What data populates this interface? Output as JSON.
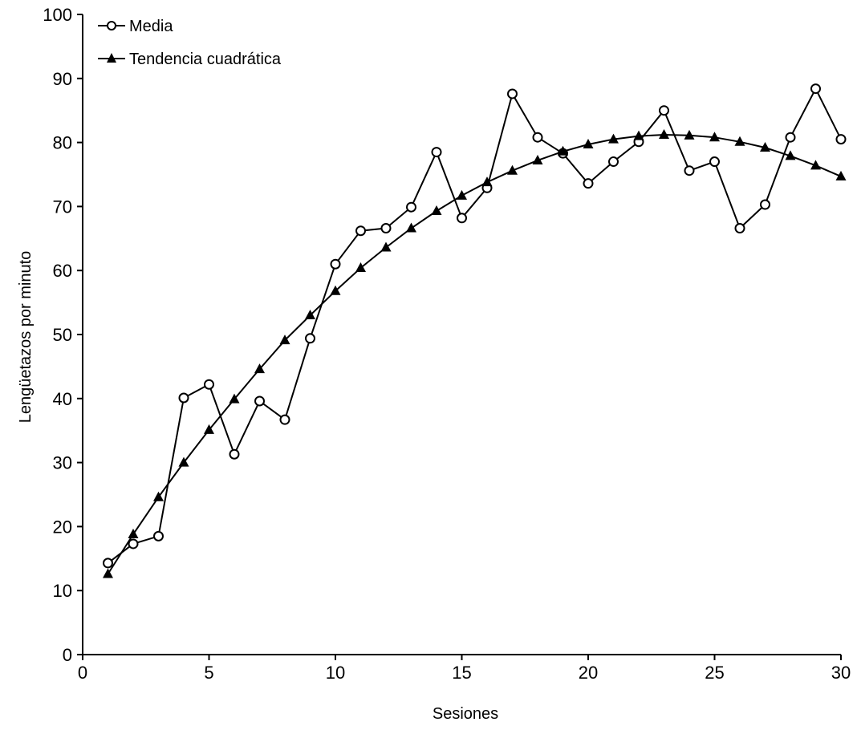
{
  "chart_data": {
    "type": "line",
    "title": "",
    "xlabel": "Sesiones",
    "ylabel": "Lengüetazos por minuto",
    "xlim": [
      0,
      30
    ],
    "ylim": [
      0,
      100
    ],
    "xticks": [
      0,
      5,
      10,
      15,
      20,
      25,
      30
    ],
    "yticks": [
      0,
      10,
      20,
      30,
      40,
      50,
      60,
      70,
      80,
      90,
      100
    ],
    "grid": false,
    "legend_position": "top-left",
    "series": [
      {
        "name": "Media",
        "marker": "open-circle",
        "color": "#000000",
        "x": [
          1,
          2,
          3,
          4,
          5,
          6,
          7,
          8,
          9,
          10,
          11,
          12,
          13,
          14,
          15,
          16,
          17,
          18,
          19,
          20,
          21,
          22,
          23,
          24,
          25,
          26,
          27,
          28,
          29,
          30
        ],
        "values": [
          14.3,
          17.3,
          18.5,
          40.1,
          42.2,
          31.3,
          39.6,
          36.7,
          49.4,
          61.0,
          66.2,
          66.6,
          69.9,
          78.5,
          68.2,
          72.9,
          87.6,
          80.8,
          78.3,
          73.6,
          77.0,
          80.1,
          85.0,
          75.6,
          77.0,
          66.6,
          70.3,
          80.8,
          88.4,
          80.5
        ]
      },
      {
        "name": "Tendencia cuadrática",
        "marker": "filled-triangle",
        "color": "#000000",
        "x": [
          1,
          2,
          3,
          4,
          5,
          6,
          7,
          8,
          9,
          10,
          11,
          12,
          13,
          14,
          15,
          16,
          17,
          18,
          19,
          20,
          21,
          22,
          23,
          24,
          25,
          26,
          27,
          28,
          29,
          30
        ],
        "values": [
          12.6,
          18.8,
          24.6,
          30.0,
          35.1,
          39.9,
          44.6,
          49.1,
          53.0,
          56.8,
          60.4,
          63.6,
          66.6,
          69.3,
          71.7,
          73.8,
          75.6,
          77.2,
          78.6,
          79.7,
          80.5,
          81.0,
          81.2,
          81.1,
          80.8,
          80.1,
          79.2,
          77.9,
          76.4,
          74.7
        ]
      }
    ]
  }
}
